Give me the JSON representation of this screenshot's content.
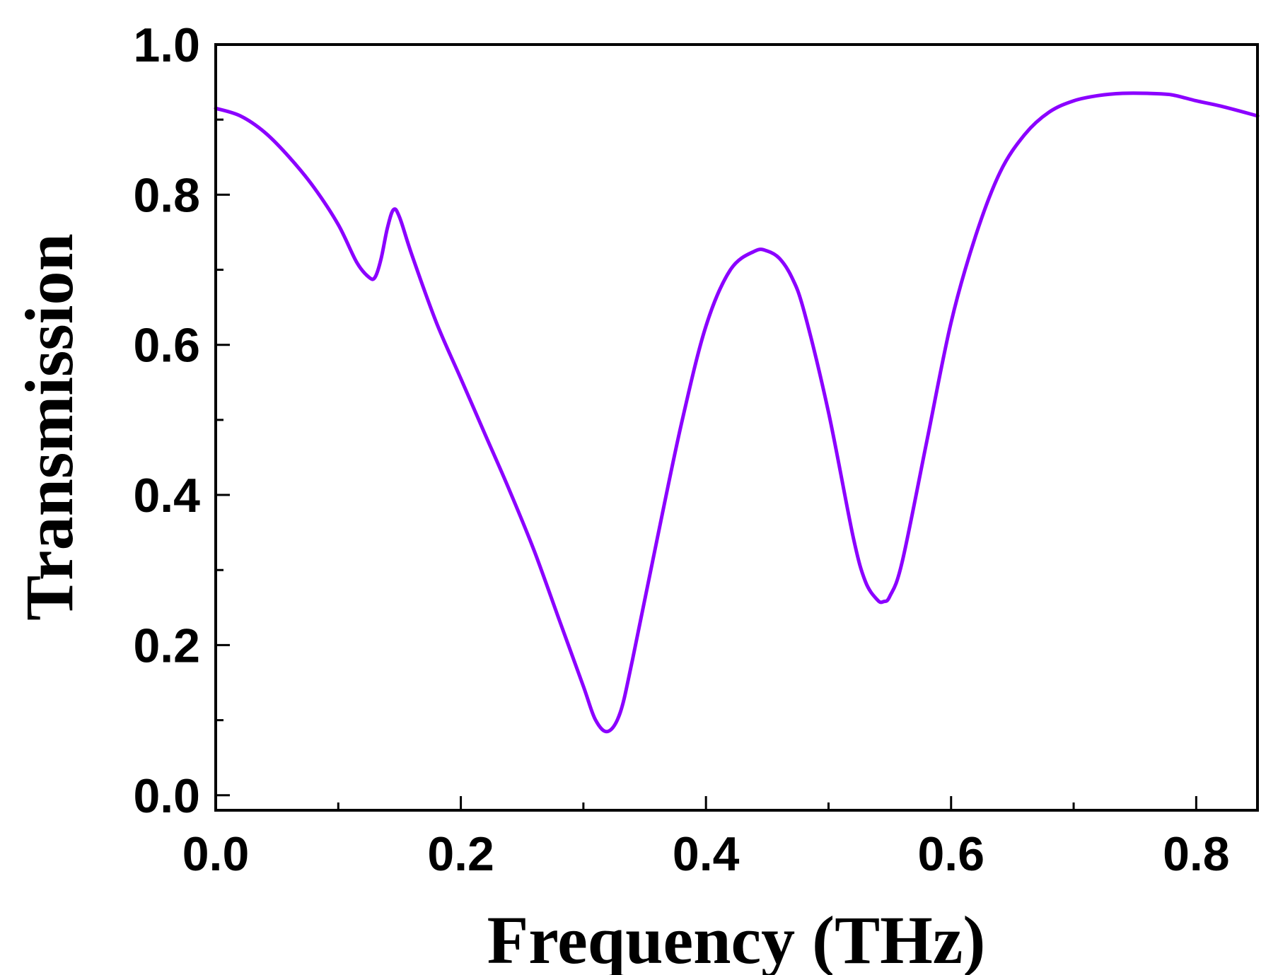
{
  "chart_data": {
    "type": "line",
    "title": "",
    "xlabel": "Frequency (THz)",
    "ylabel": "Transmission",
    "xlim": [
      0.0,
      0.85
    ],
    "ylim": [
      -0.02,
      1.0
    ],
    "xticks": [
      0.0,
      0.2,
      0.4,
      0.6,
      0.8
    ],
    "xtick_labels": [
      "0.0",
      "0.2",
      "0.4",
      "0.6",
      "0.8"
    ],
    "xminor_ticks": [
      0.1,
      0.3,
      0.5,
      0.7
    ],
    "yticks": [
      0.0,
      0.2,
      0.4,
      0.6,
      0.8,
      1.0
    ],
    "ytick_labels": [
      "0.0",
      "0.2",
      "0.4",
      "0.6",
      "0.8",
      "1.0"
    ],
    "yminor_ticks": [
      0.1,
      0.3,
      0.5,
      0.7,
      0.9
    ],
    "grid": false,
    "legend": "none",
    "series": [
      {
        "color": "#8B00FF",
        "x": [
          0.0,
          0.02,
          0.04,
          0.06,
          0.08,
          0.1,
          0.115,
          0.125,
          0.13,
          0.135,
          0.14,
          0.145,
          0.15,
          0.16,
          0.18,
          0.2,
          0.22,
          0.24,
          0.26,
          0.28,
          0.3,
          0.31,
          0.32,
          0.33,
          0.34,
          0.36,
          0.38,
          0.4,
          0.42,
          0.44,
          0.45,
          0.46,
          0.47,
          0.48,
          0.5,
          0.52,
          0.53,
          0.54,
          0.545,
          0.55,
          0.56,
          0.58,
          0.6,
          0.62,
          0.64,
          0.66,
          0.68,
          0.7,
          0.72,
          0.74,
          0.76,
          0.78,
          0.8,
          0.82,
          0.85
        ],
        "y": [
          0.915,
          0.905,
          0.883,
          0.85,
          0.81,
          0.76,
          0.71,
          0.69,
          0.69,
          0.715,
          0.755,
          0.78,
          0.77,
          0.72,
          0.63,
          0.555,
          0.48,
          0.405,
          0.325,
          0.235,
          0.145,
          0.1,
          0.085,
          0.11,
          0.18,
          0.34,
          0.495,
          0.625,
          0.7,
          0.725,
          0.725,
          0.715,
          0.69,
          0.645,
          0.51,
          0.345,
          0.285,
          0.26,
          0.258,
          0.265,
          0.31,
          0.47,
          0.63,
          0.745,
          0.83,
          0.88,
          0.91,
          0.925,
          0.932,
          0.935,
          0.935,
          0.933,
          0.925,
          0.918,
          0.905
        ]
      }
    ]
  }
}
